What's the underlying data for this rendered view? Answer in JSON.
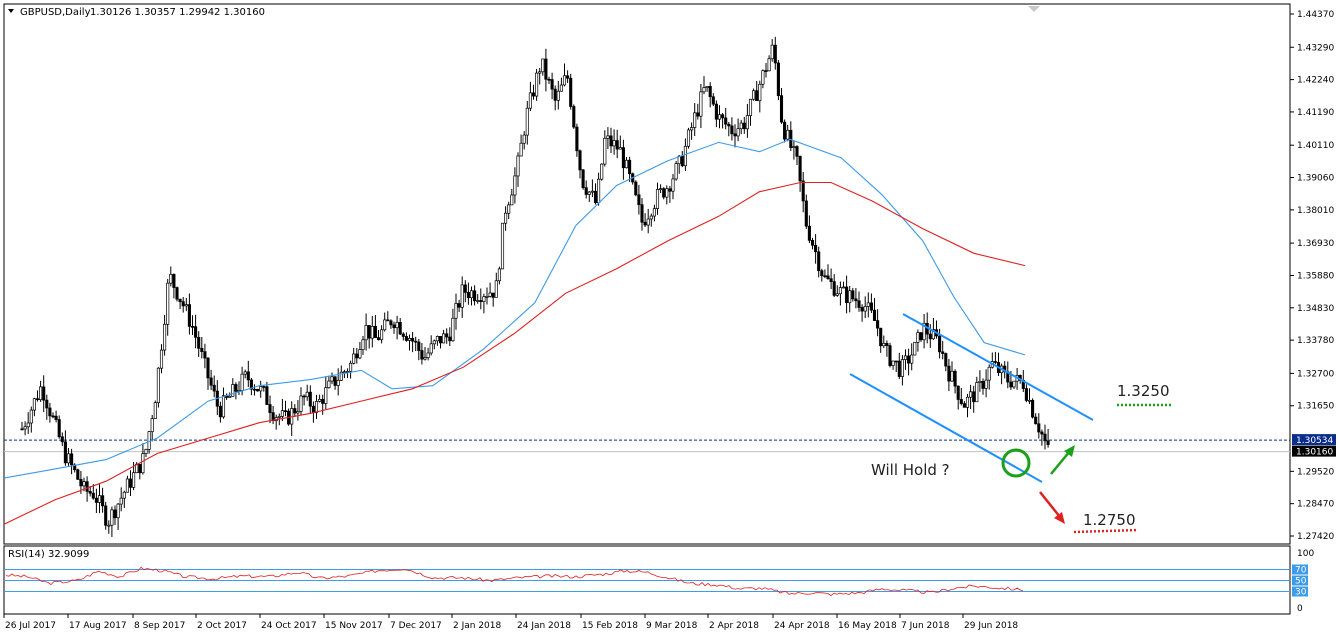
{
  "header": {
    "symbol": "GBPUSD,Daily",
    "ohlc": "1.30126 1.30357 1.29942 1.30160"
  },
  "rsi_header": "RSI(14) 32.9099",
  "colors": {
    "bull_candle": "#ffffff",
    "bear_candle": "#000000",
    "ma_fast": "#3d9be9",
    "ma_slow": "#e02020",
    "channel": "#1e90ff",
    "rsi_line": "#e02020",
    "rsi_levels": "#3d9be9",
    "up_arrow": "#1aa01a",
    "down_arrow": "#e02020",
    "circle": "#1aa01a"
  },
  "annotations": {
    "target_up": "1.3250",
    "target_down": "1.2750",
    "question": "Will Hold ?"
  },
  "chart_data": [
    {
      "type": "candlestick",
      "title": "GBPUSD,Daily",
      "y_ticks": [
        "1.44370",
        "1.43290",
        "1.42240",
        "1.41190",
        "1.40110",
        "1.39060",
        "1.38010",
        "1.36930",
        "1.35880",
        "1.34830",
        "1.33780",
        "1.32700",
        "1.31650",
        "1.30534",
        "1.30160",
        "1.29520",
        "1.28470",
        "1.27420"
      ],
      "x_ticks": [
        "26 Jul 2017",
        "17 Aug 2017",
        "8 Sep 2017",
        "2 Oct 2017",
        "24 Oct 2017",
        "15 Nov 2017",
        "7 Dec 2017",
        "2 Jan 2018",
        "24 Jan 2018",
        "15 Feb 2018",
        "9 Mar 2018",
        "2 Apr 2018",
        "24 Apr 2018",
        "16 May 2018",
        "7 Jun 2018",
        "29 Jun 2018"
      ],
      "ylim": [
        1.2742,
        1.4437
      ],
      "last_price": 1.3016,
      "marked_price": 1.30534,
      "close_path": [
        [
          "26 Jul 2017",
          1.309
        ],
        [
          "1 Aug 2017",
          1.323
        ],
        [
          "8 Aug 2017",
          1.301
        ],
        [
          "14 Aug 2017",
          1.289
        ],
        [
          "17 Aug 2017",
          1.288
        ],
        [
          "22 Aug 2017",
          1.279
        ],
        [
          "28 Aug 2017",
          1.289
        ],
        [
          "4 Sep 2017",
          1.3
        ],
        [
          "8 Sep 2017",
          1.321
        ],
        [
          "13 Sep 2017",
          1.359
        ],
        [
          "18 Sep 2017",
          1.35
        ],
        [
          "22 Sep 2017",
          1.342
        ],
        [
          "27 Sep 2017",
          1.328
        ],
        [
          "2 Oct 2017",
          1.315
        ],
        [
          "6 Oct 2017",
          1.32
        ],
        [
          "11 Oct 2017",
          1.326
        ],
        [
          "17 Oct 2017",
          1.32
        ],
        [
          "20 Oct 2017",
          1.314
        ],
        [
          "24 Oct 2017",
          1.312
        ],
        [
          "30 Oct 2017",
          1.319
        ],
        [
          "3 Nov 2017",
          1.316
        ],
        [
          "8 Nov 2017",
          1.323
        ],
        [
          "15 Nov 2017",
          1.33
        ],
        [
          "20 Nov 2017",
          1.342
        ],
        [
          "24 Nov 2017",
          1.338
        ],
        [
          "30 Nov 2017",
          1.345
        ],
        [
          "7 Dec 2017",
          1.338
        ],
        [
          "12 Dec 2017",
          1.332
        ],
        [
          "18 Dec 2017",
          1.338
        ],
        [
          "22 Dec 2017",
          1.339
        ],
        [
          "28 Dec 2017",
          1.354
        ],
        [
          "2 Jan 2018",
          1.353
        ],
        [
          "9 Jan 2018",
          1.354
        ],
        [
          "12 Jan 2018",
          1.38
        ],
        [
          "16 Jan 2018",
          1.393
        ],
        [
          "19 Jan 2018",
          1.41
        ],
        [
          "24 Jan 2018",
          1.428
        ],
        [
          "29 Jan 2018",
          1.415
        ],
        [
          "2 Feb 2018",
          1.424
        ],
        [
          "7 Feb 2018",
          1.39
        ],
        [
          "12 Feb 2018",
          1.382
        ],
        [
          "15 Feb 2018",
          1.403
        ],
        [
          "20 Feb 2018",
          1.4
        ],
        [
          "23 Feb 2018",
          1.392
        ],
        [
          "28 Feb 2018",
          1.376
        ],
        [
          "5 Mar 2018",
          1.384
        ],
        [
          "9 Mar 2018",
          1.388
        ],
        [
          "14 Mar 2018",
          1.396
        ],
        [
          "19 Mar 2018",
          1.41
        ],
        [
          "23 Mar 2018",
          1.42
        ],
        [
          "28 Mar 2018",
          1.41
        ],
        [
          "2 Apr 2018",
          1.406
        ],
        [
          "6 Apr 2018",
          1.408
        ],
        [
          "11 Apr 2018",
          1.42
        ],
        [
          "16 Apr 2018",
          1.433
        ],
        [
          "19 Apr 2018",
          1.408
        ],
        [
          "24 Apr 2018",
          1.395
        ],
        [
          "27 Apr 2018",
          1.376
        ],
        [
          "3 May 2018",
          1.358
        ],
        [
          "9 May 2018",
          1.353
        ],
        [
          "16 May 2018",
          1.35
        ],
        [
          "21 May 2018",
          1.343
        ],
        [
          "24 May 2018",
          1.334
        ],
        [
          "30 May 2018",
          1.328
        ],
        [
          "4 Jun 2018",
          1.335
        ],
        [
          "7 Jun 2018",
          1.342
        ],
        [
          "12 Jun 2018",
          1.337
        ],
        [
          "15 Jun 2018",
          1.328
        ],
        [
          "20 Jun 2018",
          1.317
        ],
        [
          "25 Jun 2018",
          1.322
        ],
        [
          "29 Jun 2018",
          1.33
        ],
        [
          "4 Jul 2018",
          1.325
        ],
        [
          "9 Jul 2018",
          1.324
        ],
        [
          "12 Jul 2018",
          1.315
        ],
        [
          "17 Jul 2018",
          1.3016
        ]
      ],
      "series": [
        {
          "name": "MA fast",
          "values": [
            [
              0,
              1.293
            ],
            [
              0.05,
              1.296
            ],
            [
              0.1,
              1.299
            ],
            [
              0.15,
              1.306
            ],
            [
              0.2,
              1.318
            ],
            [
              0.25,
              1.323
            ],
            [
              0.3,
              1.325
            ],
            [
              0.35,
              1.328
            ],
            [
              0.38,
              1.322
            ],
            [
              0.42,
              1.323
            ],
            [
              0.47,
              1.335
            ],
            [
              0.52,
              1.35
            ],
            [
              0.56,
              1.375
            ],
            [
              0.6,
              1.388
            ],
            [
              0.65,
              1.396
            ],
            [
              0.7,
              1.402
            ],
            [
              0.74,
              1.399
            ],
            [
              0.77,
              1.403
            ],
            [
              0.82,
              1.397
            ],
            [
              0.86,
              1.385
            ],
            [
              0.9,
              1.37
            ],
            [
              0.93,
              1.352
            ],
            [
              0.96,
              1.337
            ],
            [
              1.0,
              1.333
            ]
          ]
        },
        {
          "name": "MA slow",
          "values": [
            [
              0,
              1.278
            ],
            [
              0.05,
              1.286
            ],
            [
              0.1,
              1.292
            ],
            [
              0.15,
              1.301
            ],
            [
              0.2,
              1.306
            ],
            [
              0.25,
              1.311
            ],
            [
              0.3,
              1.314
            ],
            [
              0.35,
              1.318
            ],
            [
              0.4,
              1.322
            ],
            [
              0.45,
              1.329
            ],
            [
              0.5,
              1.34
            ],
            [
              0.55,
              1.353
            ],
            [
              0.6,
              1.361
            ],
            [
              0.65,
              1.37
            ],
            [
              0.7,
              1.378
            ],
            [
              0.74,
              1.386
            ],
            [
              0.78,
              1.389
            ],
            [
              0.81,
              1.389
            ],
            [
              0.85,
              1.383
            ],
            [
              0.9,
              1.374
            ],
            [
              0.95,
              1.366
            ],
            [
              1.0,
              1.362
            ]
          ]
        }
      ]
    },
    {
      "type": "line",
      "title": "RSI(14) 32.9099",
      "y_ticks": [
        "100",
        "70",
        "50",
        "30",
        "0"
      ],
      "ylim": [
        0,
        100
      ],
      "levels": [
        70,
        50,
        30
      ],
      "series": [
        {
          "name": "RSI(14)",
          "values": [
            [
              0,
              60
            ],
            [
              0.03,
              57
            ],
            [
              0.06,
              45
            ],
            [
              0.1,
              50
            ],
            [
              0.13,
              67
            ],
            [
              0.16,
              57
            ],
            [
              0.19,
              72
            ],
            [
              0.22,
              68
            ],
            [
              0.25,
              57
            ],
            [
              0.29,
              53
            ],
            [
              0.33,
              58
            ],
            [
              0.37,
              57
            ],
            [
              0.41,
              65
            ],
            [
              0.44,
              54
            ],
            [
              0.48,
              58
            ],
            [
              0.52,
              68
            ],
            [
              0.56,
              72
            ],
            [
              0.6,
              55
            ],
            [
              0.64,
              55
            ],
            [
              0.68,
              50
            ],
            [
              0.72,
              55
            ],
            [
              0.76,
              58
            ],
            [
              0.8,
              57
            ],
            [
              0.84,
              62
            ],
            [
              0.87,
              68
            ],
            [
              0.9,
              65
            ],
            [
              0.93,
              55
            ],
            [
              0.96,
              45
            ],
            [
              1.0,
              42
            ],
            [
              1.03,
              35
            ],
            [
              1.06,
              36
            ],
            [
              1.1,
              26
            ],
            [
              1.13,
              28
            ],
            [
              1.16,
              25
            ],
            [
              1.2,
              28
            ],
            [
              1.23,
              35
            ],
            [
              1.26,
              32
            ],
            [
              1.3,
              28
            ],
            [
              1.33,
              36
            ],
            [
              1.36,
              40
            ],
            [
              1.4,
              36
            ],
            [
              1.43,
              32.9
            ]
          ]
        }
      ]
    }
  ]
}
